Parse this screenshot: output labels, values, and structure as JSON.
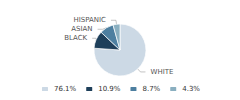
{
  "chart_data": {
    "type": "pie",
    "categories": [
      "WHITE",
      "BLACK",
      "ASIAN",
      "HISPANIC"
    ],
    "values": [
      76.1,
      10.9,
      8.7,
      4.3
    ],
    "value_labels": [
      "76.1%",
      "10.9%",
      "8.7%",
      "4.3%"
    ],
    "colors": [
      "#ccd9e5",
      "#1e3f5a",
      "#4d7fa0",
      "#8aafc0"
    ],
    "legend": "bottom"
  }
}
